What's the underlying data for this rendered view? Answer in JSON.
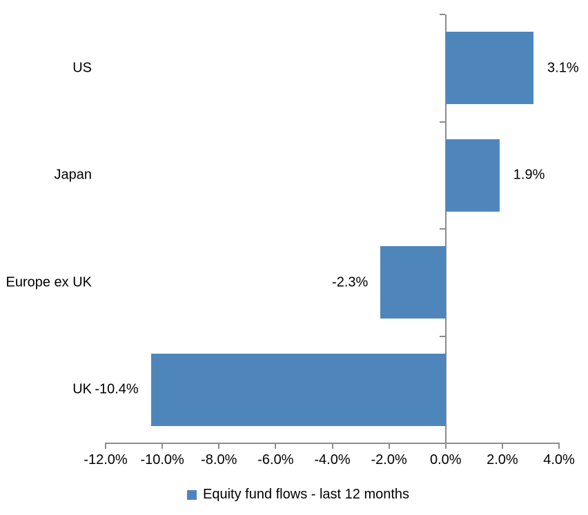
{
  "chart_data": {
    "type": "bar",
    "orientation": "horizontal",
    "title": "",
    "categories": [
      "US",
      "Japan",
      "Europe ex UK",
      "UK"
    ],
    "series": [
      {
        "name": "Equity fund flows - last 12 months",
        "values": [
          3.1,
          1.9,
          -2.3,
          -10.4
        ],
        "data_labels": [
          "3.1%",
          "1.9%",
          "-2.3%",
          "-10.4%"
        ]
      }
    ],
    "xlabel": "",
    "ylabel": "",
    "xlim": [
      -12,
      4
    ],
    "x_ticks": [
      {
        "value": -12,
        "label": "-12.0%"
      },
      {
        "value": -10,
        "label": "-10.0%"
      },
      {
        "value": -8,
        "label": "-8.0%"
      },
      {
        "value": -6,
        "label": "-6.0%"
      },
      {
        "value": -4,
        "label": "-4.0%"
      },
      {
        "value": -2,
        "label": "-2.0%"
      },
      {
        "value": 0,
        "label": "0.0%"
      },
      {
        "value": 2,
        "label": "2.0%"
      },
      {
        "value": 4,
        "label": "4.0%"
      }
    ],
    "grid": false,
    "zero_baseline": true,
    "legend": {
      "position": "bottom",
      "label": "Equity fund flows - last 12 months"
    },
    "colors": {
      "bar": "#4E86BC",
      "axis": "#8C8C8C",
      "text": "#000000",
      "background": "#FFFFFF"
    }
  }
}
